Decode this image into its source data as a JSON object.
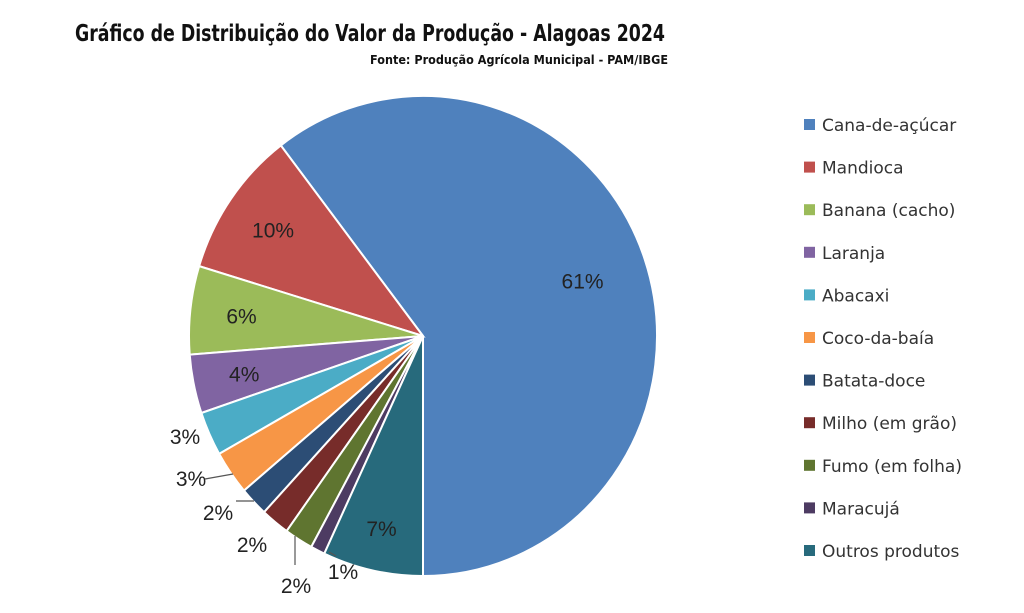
{
  "chart_data": {
    "type": "pie",
    "title": "Gráfico de Distribuição do Valor da Produção - Alagoas 2024",
    "subtitle": "Fonte: Produção Agrícola Municipal - PAM/IBGE",
    "legend_position": "right",
    "categories": [
      "Cana-de-açúcar",
      "Mandioca",
      "Banana (cacho)",
      "Laranja",
      "Abacaxi",
      "Coco-da-baía",
      "Batata-doce",
      "Milho (em grão)",
      "Fumo (em folha)",
      "Maracujá",
      "Outros produtos"
    ],
    "values": [
      61,
      10,
      6,
      4,
      3,
      3,
      2,
      2,
      2,
      1,
      7
    ],
    "labels": [
      "61%",
      "10%",
      "6%",
      "4%",
      "3%",
      "3%",
      "2%",
      "2%",
      "2%",
      "1%",
      "7%"
    ],
    "colors": [
      "#4f81bd",
      "#c0504d",
      "#9bbb59",
      "#8064a2",
      "#4bacc6",
      "#f79646",
      "#2c4d75",
      "#772c2a",
      "#5f7530",
      "#4d3b62",
      "#276a7c"
    ]
  }
}
